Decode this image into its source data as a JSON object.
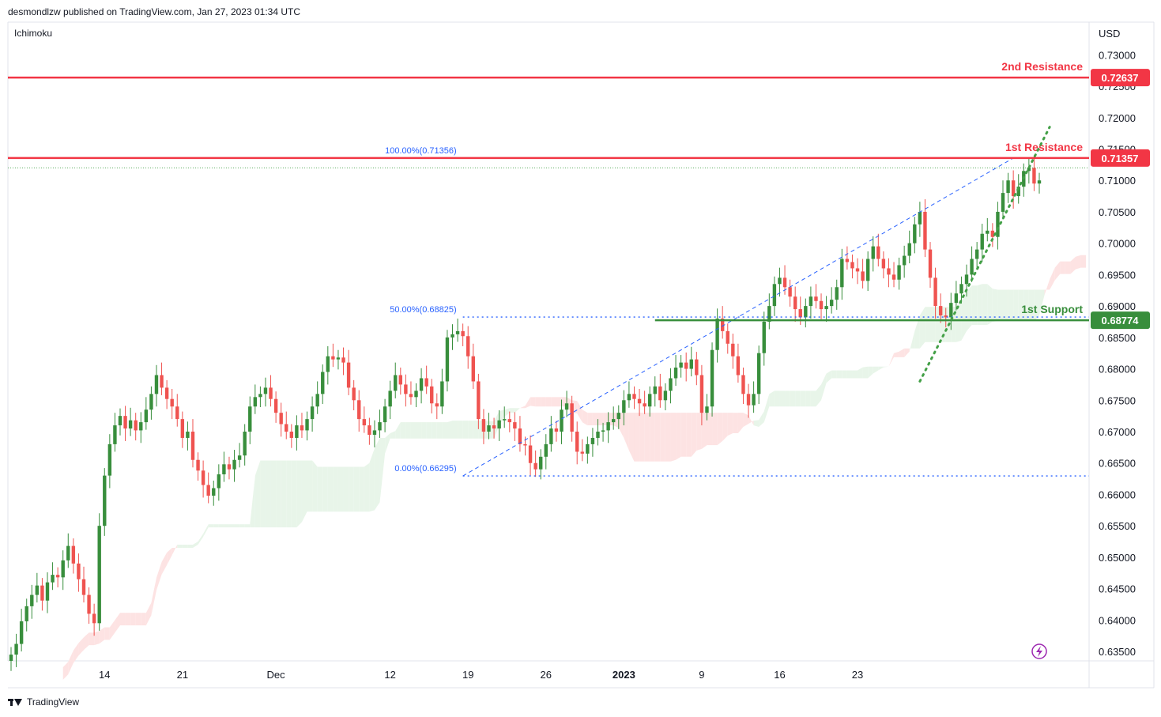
{
  "header": {
    "published_line": "desmondlzw published on TradingView.com, Jan 27, 2023 01:34 UTC",
    "indicator_label": "Ichimoku"
  },
  "footer": {
    "brand": "TradingView"
  },
  "chart_data": {
    "type": "candlestick",
    "currency_label": "USD",
    "y_ticks": [
      "0.73000",
      "0.72500",
      "0.72000",
      "0.71500",
      "0.71000",
      "0.70500",
      "0.70000",
      "0.69500",
      "0.69000",
      "0.68500",
      "0.68000",
      "0.67500",
      "0.67000",
      "0.66500",
      "0.66000",
      "0.65500",
      "0.65000",
      "0.64500",
      "0.64000",
      "0.63500"
    ],
    "ylim": [
      0.6335,
      0.7352
    ],
    "x_ticks": [
      {
        "label": "14",
        "bold": false,
        "x_index": 18
      },
      {
        "label": "21",
        "bold": false,
        "x_index": 33
      },
      {
        "label": "Dec",
        "bold": false,
        "x_index": 51
      },
      {
        "label": "12",
        "bold": false,
        "x_index": 73
      },
      {
        "label": "19",
        "bold": false,
        "x_index": 88
      },
      {
        "label": "26",
        "bold": false,
        "x_index": 103
      },
      {
        "label": "2023",
        "bold": true,
        "x_index": 118
      },
      {
        "label": "9",
        "bold": false,
        "x_index": 133
      },
      {
        "label": "16",
        "bold": false,
        "x_index": 148
      },
      {
        "label": "23",
        "bold": false,
        "x_index": 163
      }
    ],
    "levels": [
      {
        "name": "2nd Resistance",
        "price": 0.72637,
        "tag": "0.72637",
        "color": "#f23645"
      },
      {
        "name": "1st Resistance",
        "price": 0.71357,
        "tag": "0.71357",
        "color": "#f23645"
      },
      {
        "name": "1st Support",
        "price": 0.68774,
        "tag": "0.68774",
        "color": "#388e3c"
      }
    ],
    "fib": [
      {
        "label": "100.00%(0.71356)",
        "price": 0.71356
      },
      {
        "label": "50.00%(0.68825)",
        "price": 0.68825
      },
      {
        "label": "0.00%(0.66295)",
        "price": 0.66295
      }
    ],
    "colors": {
      "up": "#26a69a",
      "up_body": "#388e3c",
      "down": "#ef5350",
      "cloud_up": "#e8f5e9",
      "cloud_down": "#fde3e3",
      "fib": "#2962ff",
      "trend": "#43a047"
    },
    "closes": [
      0.6345,
      0.6362,
      0.6398,
      0.6422,
      0.644,
      0.6455,
      0.6431,
      0.646,
      0.6472,
      0.6468,
      0.6495,
      0.6518,
      0.649,
      0.6465,
      0.644,
      0.641,
      0.6395,
      0.655,
      0.663,
      0.668,
      0.671,
      0.6725,
      0.6705,
      0.6718,
      0.6702,
      0.6715,
      0.6735,
      0.676,
      0.679,
      0.677,
      0.6752,
      0.674,
      0.672,
      0.669,
      0.67,
      0.6655,
      0.6638,
      0.6615,
      0.6598,
      0.661,
      0.6632,
      0.6648,
      0.664,
      0.6655,
      0.6662,
      0.67,
      0.674,
      0.6755,
      0.676,
      0.677,
      0.6752,
      0.673,
      0.6712,
      0.67,
      0.669,
      0.671,
      0.6702,
      0.672,
      0.674,
      0.676,
      0.6795,
      0.682,
      0.6815,
      0.6818,
      0.681,
      0.677,
      0.675,
      0.672,
      0.671,
      0.6695,
      0.6702,
      0.6715,
      0.674,
      0.6765,
      0.679,
      0.6775,
      0.676,
      0.6755,
      0.6765,
      0.6785,
      0.6772,
      0.6745,
      0.674,
      0.678,
      0.685,
      0.6855,
      0.686,
      0.6852,
      0.682,
      0.678,
      0.672,
      0.67,
      0.671,
      0.6705,
      0.6718,
      0.672,
      0.6715,
      0.6705,
      0.668,
      0.6678,
      0.665,
      0.664,
      0.666,
      0.668,
      0.6705,
      0.67,
      0.6735,
      0.6745,
      0.67,
      0.6668,
      0.6665,
      0.668,
      0.669,
      0.67,
      0.6702,
      0.6715,
      0.672,
      0.673,
      0.675,
      0.676,
      0.6752,
      0.6745,
      0.674,
      0.676,
      0.6772,
      0.675,
      0.6765,
      0.6785,
      0.6802,
      0.681,
      0.68,
      0.6815,
      0.679,
      0.673,
      0.674,
      0.683,
      0.688,
      0.686,
      0.684,
      0.682,
      0.679,
      0.676,
      0.6742,
      0.676,
      0.6825,
      0.6875,
      0.69,
      0.6935,
      0.6945,
      0.693,
      0.6915,
      0.6895,
      0.6882,
      0.69,
      0.6915,
      0.6908,
      0.6895,
      0.69,
      0.691,
      0.693,
      0.6975,
      0.697,
      0.696,
      0.6955,
      0.694,
      0.6975,
      0.6995,
      0.6975,
      0.696,
      0.695,
      0.6942,
      0.6965,
      0.698,
      0.7,
      0.703,
      0.705,
      0.699,
      0.6945,
      0.69,
      0.6885,
      0.6882,
      0.6905,
      0.692,
      0.6935,
      0.695,
      0.6975,
      0.699,
      0.7015,
      0.702,
      0.701,
      0.705,
      0.708,
      0.71,
      0.7075,
      0.709,
      0.7115,
      0.712,
      0.7095,
      0.71
    ],
    "watermark_icon": "lightning-icon"
  }
}
